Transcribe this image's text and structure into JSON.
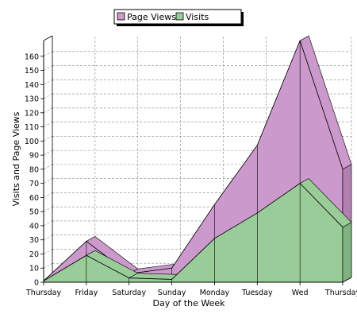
{
  "chart_data": {
    "type": "area",
    "style": "3d-stacked-area",
    "categories": [
      "Thursday",
      "Friday",
      "Saturday",
      "Sunday",
      "Monday",
      "Tuesday",
      "Wed",
      "Thursday"
    ],
    "series": [
      {
        "name": "Page Views",
        "values": [
          1,
          29,
          6,
          10,
          55,
          97,
          171,
          80
        ],
        "color": "#cc99cc"
      },
      {
        "name": "Visits",
        "values": [
          1,
          19,
          3,
          2,
          31,
          49,
          70,
          39
        ],
        "color": "#99cc99"
      }
    ],
    "xlabel": "Day of the Week",
    "ylabel": "Visits and Page Views",
    "ylim": [
      0,
      170
    ],
    "yticks": [
      0,
      10,
      20,
      30,
      40,
      50,
      60,
      70,
      80,
      90,
      100,
      110,
      120,
      130,
      140,
      150,
      160
    ],
    "grid": true,
    "legend_position": "top-center"
  }
}
